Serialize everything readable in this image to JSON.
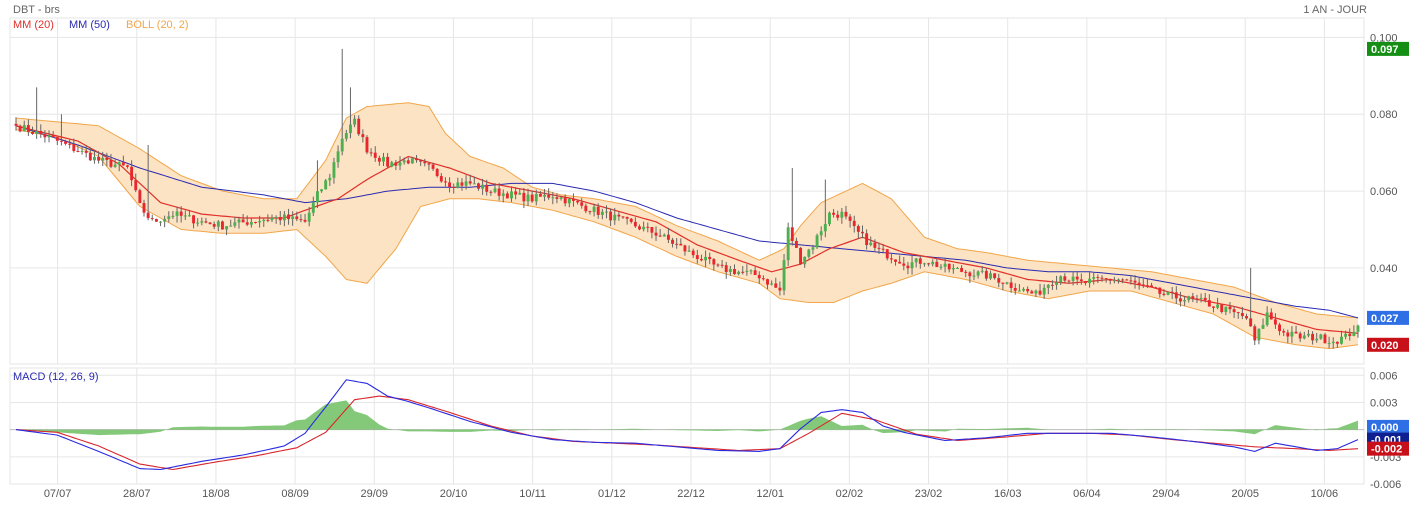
{
  "header": {
    "symbol_label": "DBT - brs",
    "period_label": "1 AN - JOUR"
  },
  "colors": {
    "grid": "#e6e6e6",
    "axis_text": "#555555",
    "mm20": "#e0302a",
    "mm50": "#2a2ab0",
    "boll_fill": "#fbe3c4",
    "boll_line": "#f1a64a",
    "candle_up": "#4caf50",
    "candle_down": "#e8262d",
    "wick": "#666666",
    "macd_line": "#2a2ae0",
    "signal_line": "#d8262d",
    "histogram": "#6fbf62",
    "tag_green": "#148f14",
    "tag_blue": "#2f6fe6",
    "tag_red": "#c8101a",
    "tag_navy": "#0f1f8f"
  },
  "chart_data": [
    {
      "type": "candlestick",
      "legend": [
        "MM (20)",
        "MM (50)",
        "BOLL (20, 2)"
      ],
      "ylim": [
        0.015,
        0.104
      ],
      "yticks": [
        "0.100",
        "0.080",
        "0.060",
        "0.040"
      ],
      "ytick_values": [
        0.1,
        0.08,
        0.06,
        0.04
      ],
      "xticks": [
        "07/07",
        "28/07",
        "18/08",
        "08/09",
        "29/09",
        "20/10",
        "10/11",
        "01/12",
        "22/12",
        "12/01",
        "02/02",
        "23/02",
        "16/03",
        "06/04",
        "29/04",
        "20/05",
        "10/06"
      ],
      "price_tags": [
        {
          "label": "0.097",
          "value": 0.097,
          "color": "#148f14"
        },
        {
          "label": "0.027",
          "value": 0.027,
          "color": "#2f6fe6"
        },
        {
          "label": "0.020",
          "value": 0.02,
          "color": "#c8101a"
        }
      ],
      "close_anchors": [
        [
          0,
          0.077
        ],
        [
          8,
          0.074
        ],
        [
          14,
          0.071
        ],
        [
          20,
          0.068
        ],
        [
          27,
          0.066
        ],
        [
          30,
          0.056
        ],
        [
          33,
          0.052
        ],
        [
          38,
          0.054
        ],
        [
          45,
          0.052
        ],
        [
          50,
          0.051
        ],
        [
          56,
          0.052
        ],
        [
          62,
          0.053
        ],
        [
          65,
          0.053
        ],
        [
          70,
          0.052
        ],
        [
          73,
          0.059
        ],
        [
          76,
          0.064
        ],
        [
          79,
          0.074
        ],
        [
          82,
          0.078
        ],
        [
          85,
          0.071
        ],
        [
          90,
          0.067
        ],
        [
          95,
          0.068
        ],
        [
          100,
          0.066
        ],
        [
          105,
          0.062
        ],
        [
          110,
          0.062
        ],
        [
          115,
          0.06
        ],
        [
          120,
          0.059
        ],
        [
          125,
          0.058
        ],
        [
          130,
          0.059
        ],
        [
          135,
          0.057
        ],
        [
          140,
          0.055
        ],
        [
          145,
          0.053
        ],
        [
          150,
          0.051
        ],
        [
          155,
          0.049
        ],
        [
          160,
          0.046
        ],
        [
          163,
          0.044
        ],
        [
          165,
          0.043
        ],
        [
          170,
          0.04
        ],
        [
          175,
          0.039
        ],
        [
          180,
          0.038
        ],
        [
          185,
          0.034
        ],
        [
          187,
          0.05
        ],
        [
          190,
          0.042
        ],
        [
          193,
          0.046
        ],
        [
          197,
          0.054
        ],
        [
          200,
          0.054
        ],
        [
          203,
          0.05
        ],
        [
          208,
          0.045
        ],
        [
          212,
          0.043
        ],
        [
          216,
          0.041
        ],
        [
          220,
          0.042
        ],
        [
          225,
          0.04
        ],
        [
          230,
          0.039
        ],
        [
          235,
          0.038
        ],
        [
          238,
          0.037
        ],
        [
          242,
          0.035
        ],
        [
          247,
          0.033
        ],
        [
          250,
          0.036
        ],
        [
          253,
          0.038
        ],
        [
          258,
          0.036
        ],
        [
          263,
          0.037
        ],
        [
          268,
          0.037
        ],
        [
          273,
          0.035
        ],
        [
          278,
          0.033
        ],
        [
          283,
          0.032
        ],
        [
          288,
          0.031
        ],
        [
          293,
          0.029
        ],
        [
          298,
          0.027
        ],
        [
          300,
          0.021
        ],
        [
          303,
          0.028
        ],
        [
          307,
          0.023
        ],
        [
          311,
          0.022
        ],
        [
          315,
          0.022
        ],
        [
          319,
          0.021
        ],
        [
          322,
          0.022
        ],
        [
          325,
          0.025
        ]
      ],
      "mm20_anchors": [
        [
          0,
          0.077
        ],
        [
          15,
          0.073
        ],
        [
          25,
          0.067
        ],
        [
          35,
          0.057
        ],
        [
          45,
          0.054
        ],
        [
          55,
          0.053
        ],
        [
          65,
          0.053
        ],
        [
          70,
          0.055
        ],
        [
          78,
          0.058
        ],
        [
          85,
          0.063
        ],
        [
          95,
          0.069
        ],
        [
          105,
          0.066
        ],
        [
          115,
          0.062
        ],
        [
          125,
          0.06
        ],
        [
          135,
          0.058
        ],
        [
          145,
          0.055
        ],
        [
          155,
          0.052
        ],
        [
          165,
          0.046
        ],
        [
          175,
          0.042
        ],
        [
          183,
          0.039
        ],
        [
          190,
          0.041
        ],
        [
          197,
          0.045
        ],
        [
          205,
          0.048
        ],
        [
          215,
          0.044
        ],
        [
          225,
          0.042
        ],
        [
          235,
          0.04
        ],
        [
          245,
          0.037
        ],
        [
          255,
          0.036
        ],
        [
          265,
          0.037
        ],
        [
          275,
          0.035
        ],
        [
          285,
          0.032
        ],
        [
          295,
          0.03
        ],
        [
          305,
          0.027
        ],
        [
          315,
          0.024
        ],
        [
          325,
          0.023
        ]
      ],
      "mm50_anchors": [
        [
          0,
          0.077
        ],
        [
          15,
          0.072
        ],
        [
          30,
          0.066
        ],
        [
          45,
          0.061
        ],
        [
          60,
          0.059
        ],
        [
          70,
          0.057
        ],
        [
          80,
          0.058
        ],
        [
          90,
          0.06
        ],
        [
          100,
          0.061
        ],
        [
          110,
          0.061
        ],
        [
          120,
          0.062
        ],
        [
          130,
          0.062
        ],
        [
          140,
          0.06
        ],
        [
          150,
          0.057
        ],
        [
          160,
          0.053
        ],
        [
          170,
          0.05
        ],
        [
          180,
          0.047
        ],
        [
          190,
          0.046
        ],
        [
          200,
          0.045
        ],
        [
          210,
          0.044
        ],
        [
          220,
          0.043
        ],
        [
          230,
          0.042
        ],
        [
          240,
          0.04
        ],
        [
          250,
          0.039
        ],
        [
          260,
          0.039
        ],
        [
          270,
          0.038
        ],
        [
          280,
          0.036
        ],
        [
          290,
          0.034
        ],
        [
          300,
          0.032
        ],
        [
          310,
          0.03
        ],
        [
          318,
          0.029
        ],
        [
          325,
          0.027
        ]
      ],
      "boll_upper_anchors": [
        [
          0,
          0.079
        ],
        [
          10,
          0.078
        ],
        [
          20,
          0.077
        ],
        [
          30,
          0.071
        ],
        [
          40,
          0.064
        ],
        [
          50,
          0.06
        ],
        [
          60,
          0.058
        ],
        [
          68,
          0.058
        ],
        [
          75,
          0.068
        ],
        [
          80,
          0.079
        ],
        [
          85,
          0.082
        ],
        [
          95,
          0.083
        ],
        [
          100,
          0.082
        ],
        [
          104,
          0.075
        ],
        [
          110,
          0.069
        ],
        [
          118,
          0.066
        ],
        [
          125,
          0.061
        ],
        [
          132,
          0.059
        ],
        [
          140,
          0.058
        ],
        [
          150,
          0.056
        ],
        [
          160,
          0.051
        ],
        [
          170,
          0.047
        ],
        [
          180,
          0.042
        ],
        [
          186,
          0.045
        ],
        [
          190,
          0.051
        ],
        [
          195,
          0.057
        ],
        [
          205,
          0.062
        ],
        [
          212,
          0.058
        ],
        [
          220,
          0.048
        ],
        [
          228,
          0.045
        ],
        [
          235,
          0.044
        ],
        [
          245,
          0.042
        ],
        [
          255,
          0.041
        ],
        [
          265,
          0.04
        ],
        [
          275,
          0.039
        ],
        [
          285,
          0.037
        ],
        [
          295,
          0.035
        ],
        [
          305,
          0.031
        ],
        [
          315,
          0.028
        ],
        [
          325,
          0.027
        ]
      ],
      "boll_lower_anchors": [
        [
          0,
          0.076
        ],
        [
          10,
          0.074
        ],
        [
          20,
          0.069
        ],
        [
          30,
          0.056
        ],
        [
          40,
          0.05
        ],
        [
          50,
          0.049
        ],
        [
          60,
          0.049
        ],
        [
          68,
          0.05
        ],
        [
          75,
          0.043
        ],
        [
          80,
          0.037
        ],
        [
          85,
          0.036
        ],
        [
          92,
          0.045
        ],
        [
          98,
          0.056
        ],
        [
          105,
          0.058
        ],
        [
          112,
          0.058
        ],
        [
          120,
          0.057
        ],
        [
          130,
          0.055
        ],
        [
          140,
          0.052
        ],
        [
          150,
          0.048
        ],
        [
          160,
          0.043
        ],
        [
          170,
          0.039
        ],
        [
          180,
          0.036
        ],
        [
          185,
          0.032
        ],
        [
          192,
          0.031
        ],
        [
          198,
          0.031
        ],
        [
          205,
          0.034
        ],
        [
          212,
          0.036
        ],
        [
          220,
          0.039
        ],
        [
          230,
          0.037
        ],
        [
          240,
          0.034
        ],
        [
          250,
          0.032
        ],
        [
          260,
          0.034
        ],
        [
          270,
          0.034
        ],
        [
          280,
          0.031
        ],
        [
          290,
          0.028
        ],
        [
          300,
          0.022
        ],
        [
          310,
          0.02
        ],
        [
          318,
          0.019
        ],
        [
          325,
          0.02
        ]
      ],
      "notable_highs": [
        [
          5,
          0.087
        ],
        [
          11,
          0.08
        ],
        [
          32,
          0.072
        ],
        [
          73,
          0.068
        ],
        [
          79,
          0.097
        ],
        [
          81,
          0.087
        ],
        [
          188,
          0.066
        ],
        [
          196,
          0.063
        ],
        [
          299,
          0.04
        ]
      ]
    },
    {
      "type": "macd",
      "legend": [
        "MACD (12, 26, 9)"
      ],
      "ylim": [
        -0.006,
        0.0068
      ],
      "yticks": [
        "0.006",
        "0.003",
        "0.000",
        "-0.003",
        "-0.006"
      ],
      "ytick_values": [
        0.006,
        0.003,
        0.0,
        -0.003,
        -0.006
      ],
      "value_tags": [
        {
          "label": "0.000",
          "value": 0.0003,
          "color": "#2f6fe6"
        },
        {
          "label": "-0.001",
          "value": -0.0011,
          "color": "#0f1f8f"
        },
        {
          "label": "-0.002",
          "value": -0.0021,
          "color": "#c8101a"
        }
      ],
      "macd_anchors": [
        [
          0,
          0.0
        ],
        [
          10,
          -0.0006
        ],
        [
          20,
          -0.0024
        ],
        [
          30,
          -0.0043
        ],
        [
          35,
          -0.0044
        ],
        [
          45,
          -0.0035
        ],
        [
          55,
          -0.0028
        ],
        [
          65,
          -0.0018
        ],
        [
          70,
          -0.0004
        ],
        [
          75,
          0.0025
        ],
        [
          80,
          0.0055
        ],
        [
          85,
          0.0051
        ],
        [
          90,
          0.0037
        ],
        [
          95,
          0.0031
        ],
        [
          100,
          0.0024
        ],
        [
          110,
          0.0009
        ],
        [
          120,
          -0.0003
        ],
        [
          130,
          -0.0011
        ],
        [
          140,
          -0.0014
        ],
        [
          150,
          -0.0015
        ],
        [
          160,
          -0.0019
        ],
        [
          170,
          -0.0023
        ],
        [
          180,
          -0.0024
        ],
        [
          185,
          -0.0021
        ],
        [
          190,
          0.0001
        ],
        [
          195,
          0.0019
        ],
        [
          200,
          0.0022
        ],
        [
          205,
          0.0019
        ],
        [
          210,
          0.0004
        ],
        [
          215,
          -0.0003
        ],
        [
          225,
          -0.0012
        ],
        [
          235,
          -0.0009
        ],
        [
          245,
          -0.0004
        ],
        [
          255,
          -0.0004
        ],
        [
          265,
          -0.0004
        ],
        [
          275,
          -0.0008
        ],
        [
          285,
          -0.0013
        ],
        [
          295,
          -0.0019
        ],
        [
          300,
          -0.0024
        ],
        [
          305,
          -0.0015
        ],
        [
          315,
          -0.0023
        ],
        [
          320,
          -0.0021
        ],
        [
          325,
          -0.0011
        ]
      ],
      "signal_anchors": [
        [
          0,
          0.0
        ],
        [
          10,
          -0.0003
        ],
        [
          20,
          -0.0018
        ],
        [
          30,
          -0.0038
        ],
        [
          38,
          -0.0044
        ],
        [
          48,
          -0.0036
        ],
        [
          58,
          -0.0029
        ],
        [
          68,
          -0.002
        ],
        [
          75,
          -0.0003
        ],
        [
          82,
          0.0033
        ],
        [
          88,
          0.0037
        ],
        [
          95,
          0.0033
        ],
        [
          105,
          0.0019
        ],
        [
          115,
          0.0004
        ],
        [
          125,
          -0.0007
        ],
        [
          135,
          -0.0013
        ],
        [
          145,
          -0.0015
        ],
        [
          155,
          -0.0017
        ],
        [
          165,
          -0.002
        ],
        [
          175,
          -0.0023
        ],
        [
          185,
          -0.0021
        ],
        [
          192,
          -0.0004
        ],
        [
          200,
          0.0018
        ],
        [
          208,
          0.0011
        ],
        [
          218,
          -0.0005
        ],
        [
          228,
          -0.0012
        ],
        [
          240,
          -0.0008
        ],
        [
          250,
          -0.0004
        ],
        [
          260,
          -0.0004
        ],
        [
          270,
          -0.0006
        ],
        [
          280,
          -0.0011
        ],
        [
          290,
          -0.0015
        ],
        [
          300,
          -0.0019
        ],
        [
          310,
          -0.0021
        ],
        [
          318,
          -0.0023
        ],
        [
          325,
          -0.0021
        ]
      ]
    }
  ]
}
